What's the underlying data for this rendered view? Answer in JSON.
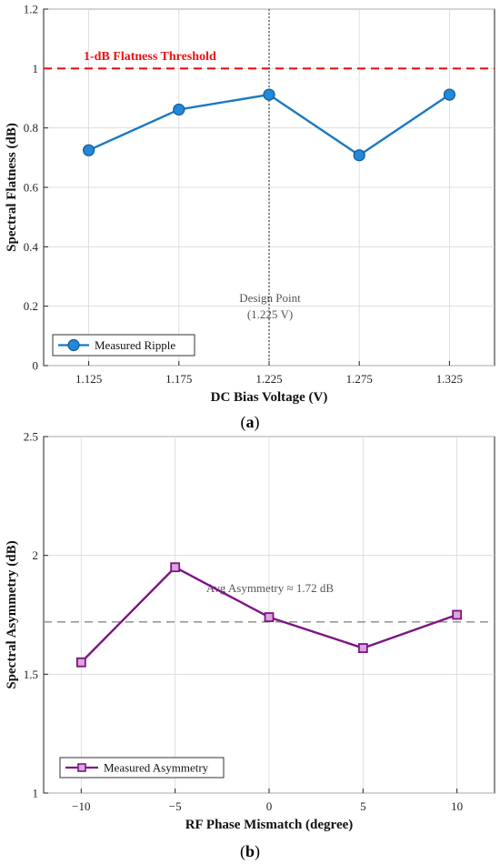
{
  "chart_data": [
    {
      "type": "line",
      "panel_label": "a",
      "xlabel": "DC Bias Voltage (V)",
      "ylabel": "Spectral Flatness (dB)",
      "x_ticks": [
        "1.125",
        "1.175",
        "1.225",
        "1.275",
        "1.325"
      ],
      "y_ticks": [
        "0",
        "0.2",
        "0.4",
        "0.6",
        "0.8",
        "1",
        "1.2"
      ],
      "xlim": [
        1.1,
        1.35
      ],
      "ylim": [
        0,
        1.2
      ],
      "grid": true,
      "legend_position": "bottom-left",
      "series": [
        {
          "name": "Measured Ripple",
          "color": "#1a78c2",
          "marker": "circle",
          "x": [
            1.125,
            1.175,
            1.225,
            1.275,
            1.325
          ],
          "y": [
            0.725,
            0.862,
            0.912,
            0.708,
            0.912
          ]
        }
      ],
      "reference_lines": [
        {
          "orientation": "horizontal",
          "value": 1.0,
          "style": "dashed",
          "color": "#ee1111",
          "label": "1-dB Flatness Threshold"
        },
        {
          "orientation": "vertical",
          "value": 1.225,
          "style": "dotted",
          "color": "#555555",
          "label_lines": [
            "Design Point",
            "(1.225 V)"
          ]
        }
      ]
    },
    {
      "type": "line",
      "panel_label": "b",
      "xlabel": "RF Phase Mismatch (degree)",
      "ylabel": "Spectral Asymmetry (dB)",
      "x_ticks": [
        "−10",
        "−5",
        "0",
        "5",
        "10"
      ],
      "y_ticks": [
        "1",
        "1.5",
        "2",
        "2.5"
      ],
      "xlim": [
        -12,
        12
      ],
      "ylim": [
        1,
        2.5
      ],
      "grid": true,
      "legend_position": "bottom-left",
      "series": [
        {
          "name": "Measured Asymmetry",
          "color": "#7e1384",
          "marker": "square",
          "x": [
            -10,
            -5,
            0,
            5,
            10
          ],
          "y": [
            1.55,
            1.95,
            1.74,
            1.61,
            1.75
          ]
        }
      ],
      "reference_lines": [
        {
          "orientation": "horizontal",
          "value": 1.72,
          "style": "dashed",
          "color": "#999999",
          "label": "Avg Asymmetry ≈ 1.72 dB"
        }
      ]
    }
  ]
}
